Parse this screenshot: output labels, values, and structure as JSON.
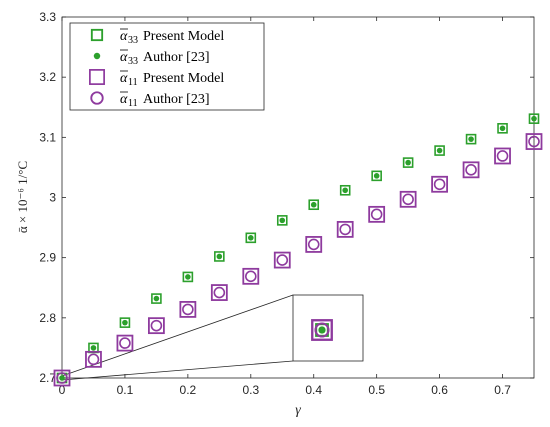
{
  "chart_data": {
    "type": "scatter",
    "title": "",
    "xlabel": "γ",
    "ylabel": "ᾱ × 10⁻⁶    1/°C",
    "xlim": [
      0,
      0.75
    ],
    "ylim": [
      2.7,
      3.3
    ],
    "xticks": [
      "0",
      "0.1",
      "0.2",
      "0.3",
      "0.4",
      "0.5",
      "0.6",
      "0.7"
    ],
    "xtick_values": [
      0,
      0.1,
      0.2,
      0.3,
      0.4,
      0.5,
      0.6,
      0.7
    ],
    "yticks": [
      "2.7",
      "2.8",
      "2.9",
      "3",
      "3.1",
      "3.2",
      "3.3"
    ],
    "ytick_values": [
      2.7,
      2.8,
      2.9,
      3.0,
      3.1,
      3.2,
      3.3
    ],
    "grid": false,
    "legend_position": "top-left",
    "x": [
      0,
      0.05,
      0.1,
      0.15,
      0.2,
      0.25,
      0.3,
      0.35,
      0.4,
      0.45,
      0.5,
      0.55,
      0.6,
      0.65,
      0.7,
      0.75
    ],
    "series": [
      {
        "name": "ᾱ₃₃ Present Model",
        "marker": "small-square",
        "color": "#2ca02c",
        "values": [
          2.7,
          2.75,
          2.792,
          2.832,
          2.868,
          2.902,
          2.933,
          2.962,
          2.988,
          3.012,
          3.036,
          3.058,
          3.078,
          3.097,
          3.115,
          3.131
        ]
      },
      {
        "name": "ᾱ₃₃ Author [23]",
        "marker": "dot",
        "color": "#2ca02c",
        "values": [
          2.7,
          2.75,
          2.792,
          2.832,
          2.868,
          2.902,
          2.933,
          2.962,
          2.988,
          3.012,
          3.036,
          3.058,
          3.078,
          3.097,
          3.115,
          3.131
        ]
      },
      {
        "name": "ᾱ₁₁ Present Model",
        "marker": "large-square",
        "color": "#8e3a9e",
        "values": [
          2.7,
          2.731,
          2.758,
          2.787,
          2.814,
          2.842,
          2.869,
          2.896,
          2.922,
          2.947,
          2.972,
          2.997,
          3.022,
          3.046,
          3.069,
          3.093
        ]
      },
      {
        "name": "ᾱ₁₁ Author [23]",
        "marker": "circle",
        "color": "#8e3a9e",
        "values": [
          2.7,
          2.731,
          2.758,
          2.787,
          2.814,
          2.842,
          2.869,
          2.896,
          2.922,
          2.947,
          2.972,
          2.997,
          3.022,
          3.046,
          3.069,
          3.093
        ]
      }
    ],
    "inset": {
      "description": "zoom on origin point",
      "x": 0,
      "y": 2.7
    }
  },
  "legend": {
    "entries": [
      {
        "sym": "α",
        "sub": "33",
        "text": "Present Model"
      },
      {
        "sym": "α",
        "sub": "33",
        "text": "Author [23]"
      },
      {
        "sym": "α",
        "sub": "11",
        "text": "Present Model"
      },
      {
        "sym": "α",
        "sub": "11",
        "text": "Author [23]"
      }
    ]
  },
  "colors": {
    "green": "#2ca02c",
    "purple": "#8e3a9e",
    "axis": "#262626"
  }
}
